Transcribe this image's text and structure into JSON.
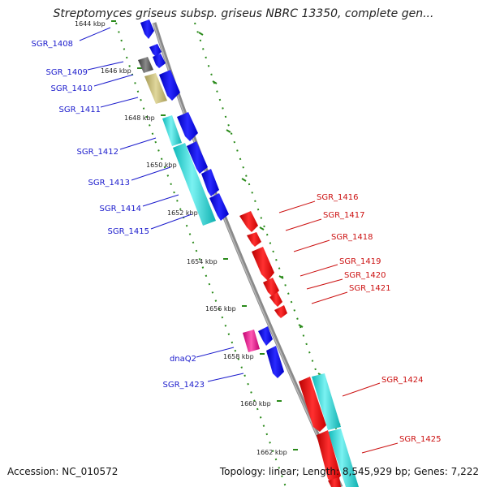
{
  "title": "Streptomyces griseus subsp. griseus NBRC 13350, complete gen...",
  "accession": "Accession: NC_010572",
  "summary": "Topology: linear; Length: 8,545,929 bp; Genes: 7,222",
  "colors": {
    "backbone": "#8a8a8a",
    "tick": "#2a8a1a",
    "left_label": "#1a1acc",
    "right_label": "#cc1111",
    "blue_gene": "#0a0af0",
    "red_gene": "#ee1010",
    "cyan_block": "#19d6d6",
    "khaki_block": "#c9bd7a",
    "gray_block": "#5a5a5a",
    "magenta_block": "#f0188c"
  },
  "ticks": [
    {
      "label": "1644 kbp"
    },
    {
      "label": "1646 kbp"
    },
    {
      "label": "1648 kbp"
    },
    {
      "label": "1650 kbp"
    },
    {
      "label": "1652 kbp"
    },
    {
      "label": "1654 kbp"
    },
    {
      "label": "1656 kbp"
    },
    {
      "label": "1658 kbp"
    },
    {
      "label": "1660 kbp"
    },
    {
      "label": "1662 kbp"
    }
  ],
  "left_labels": [
    "SGR_1408",
    "SGR_1409",
    "SGR_1410",
    "SGR_1411",
    "SGR_1412",
    "SGR_1413",
    "SGR_1414",
    "SGR_1415",
    "dnaQ2",
    "SGR_1423"
  ],
  "right_labels": [
    "SGR_1416",
    "SGR_1417",
    "SGR_1418",
    "SGR_1419",
    "SGR_1420",
    "SGR_1421",
    "SGR_1424",
    "SGR_1425"
  ]
}
